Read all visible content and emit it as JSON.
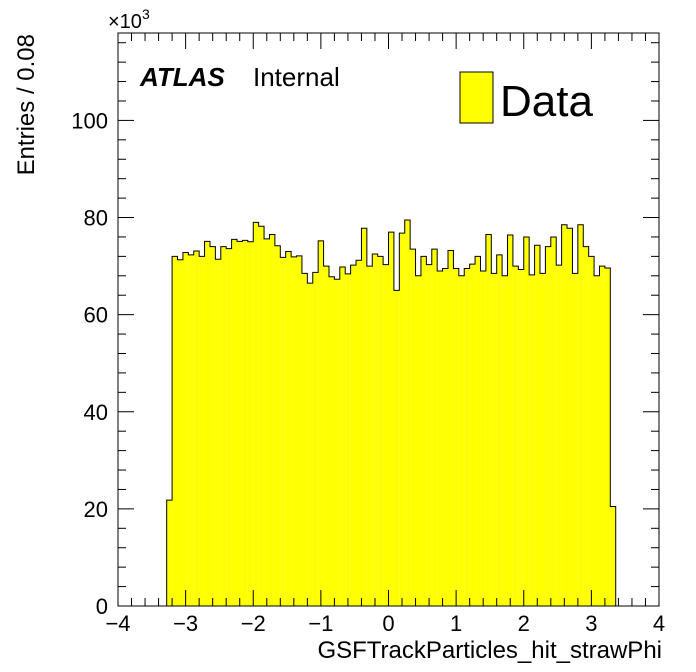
{
  "chart_data": {
    "type": "bar",
    "title": "",
    "xlabel": "GSFTrackParticles_hit_strawPhi",
    "ylabel": "Entries / 0.08",
    "xlim": [
      -4,
      4
    ],
    "ylim": [
      0,
      118
    ],
    "y_multiplier": "×10",
    "y_multiplier_exponent": "3",
    "x_major_ticks": [
      -4,
      -3,
      -2,
      -1,
      0,
      1,
      2,
      3,
      4
    ],
    "x_tick_labels": [
      "−4",
      "−3",
      "−2",
      "−1",
      "0",
      "1",
      "2",
      "3",
      "4"
    ],
    "y_major_ticks": [
      0,
      20,
      40,
      60,
      80,
      100
    ],
    "y_tick_labels": [
      "0",
      "20",
      "40",
      "60",
      "80",
      "100"
    ],
    "bin_width": 0.08,
    "bin_start": -3.28,
    "grid": false,
    "fill_color": "#ffff00",
    "line_color": "#000000",
    "legend": {
      "position": "top-right",
      "entries": [
        "Data"
      ]
    },
    "label": {
      "experiment": "ATLAS",
      "status": "Internal"
    },
    "series": [
      {
        "name": "Data",
        "values": [
          21.8,
          72.0,
          71.3,
          72.8,
          72.3,
          73.1,
          72.0,
          75.1,
          74.0,
          71.4,
          74.0,
          73.6,
          75.5,
          75.1,
          75.3,
          75.0,
          79.0,
          78.2,
          75.6,
          76.5,
          74.2,
          71.8,
          73.0,
          71.9,
          72.1,
          68.5,
          66.5,
          68.7,
          75.2,
          70.0,
          67.8,
          67.3,
          69.8,
          68.4,
          70.2,
          71.2,
          77.8,
          70.0,
          72.5,
          72.0,
          70.3,
          77.0,
          65.0,
          76.8,
          79.5,
          73.5,
          68.0,
          72.0,
          70.3,
          73.5,
          69.0,
          69.5,
          73.2,
          69.5,
          68.0,
          69.5,
          70.4,
          72.0,
          69.0,
          76.5,
          68.5,
          72.3,
          68.0,
          76.4,
          70.0,
          69.3,
          76.0,
          68.2,
          74.3,
          68.5,
          74.0,
          76.0,
          70.2,
          78.5,
          77.8,
          68.5,
          78.5,
          74.0,
          72.0,
          68.0,
          70.0,
          69.6,
          20.5
        ]
      }
    ]
  }
}
